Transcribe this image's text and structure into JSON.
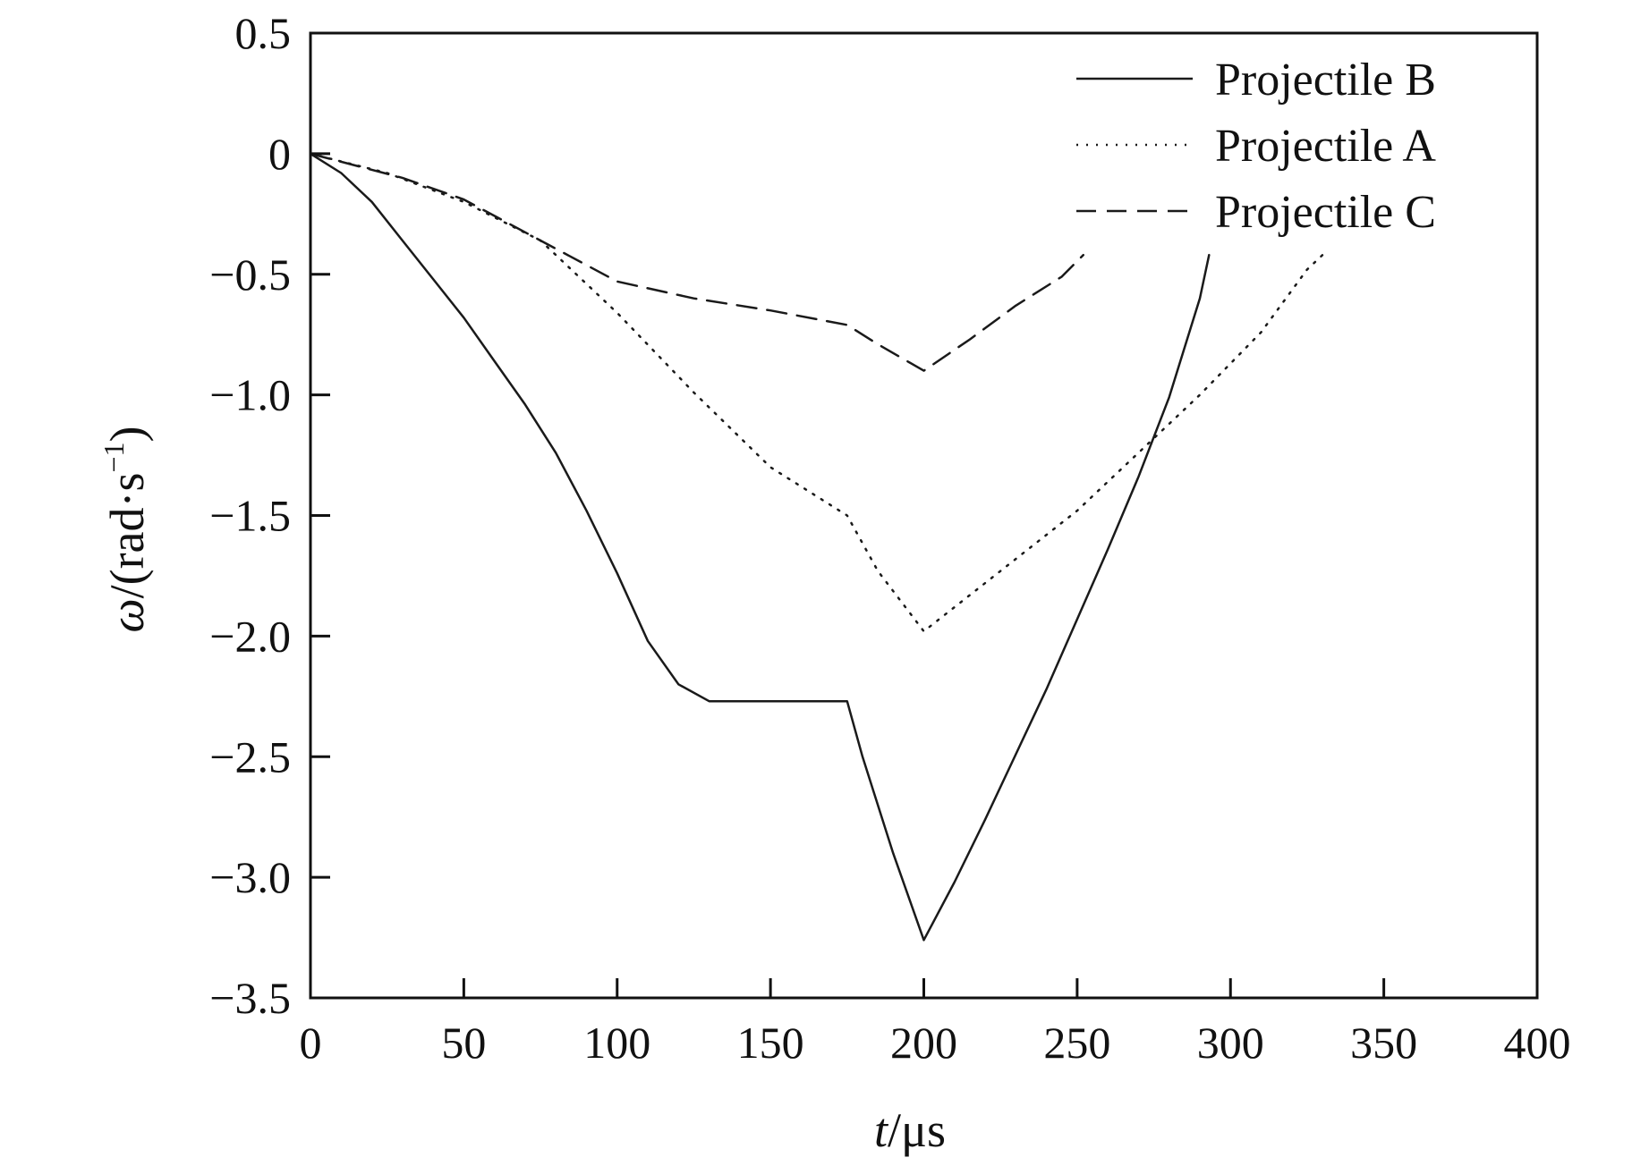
{
  "chart_data": {
    "type": "line",
    "xlabel": {
      "var": "t",
      "unit": "/μs"
    },
    "ylabel": {
      "var": "ω",
      "rest": "/(rad·s",
      "exp": "−1",
      "close": ")"
    },
    "xlim": [
      0,
      400
    ],
    "ylim": [
      -3.5,
      0.5
    ],
    "xticks": [
      0,
      50,
      100,
      150,
      200,
      250,
      300,
      350,
      400
    ],
    "xtick_labels": [
      "0",
      "50",
      "100",
      "150",
      "200",
      "250",
      "300",
      "350",
      "400"
    ],
    "yticks": [
      0.5,
      0,
      -0.5,
      -1.0,
      -1.5,
      -2.0,
      -2.5,
      -3.0,
      -3.5
    ],
    "ytick_labels": [
      "0.5",
      "0",
      "−0.5",
      "−1.0",
      "−1.5",
      "−2.0",
      "−2.5",
      "−3.0",
      "−3.5"
    ],
    "grid": false,
    "legend_position": "top-right",
    "series": [
      {
        "name": "Projectile B",
        "style": "solid",
        "color": "#1a1a1a",
        "points": [
          [
            0,
            0
          ],
          [
            10,
            -0.08
          ],
          [
            20,
            -0.2
          ],
          [
            30,
            -0.36
          ],
          [
            40,
            -0.52
          ],
          [
            50,
            -0.68
          ],
          [
            60,
            -0.86
          ],
          [
            70,
            -1.04
          ],
          [
            80,
            -1.24
          ],
          [
            90,
            -1.48
          ],
          [
            100,
            -1.74
          ],
          [
            110,
            -2.02
          ],
          [
            120,
            -2.2
          ],
          [
            130,
            -2.27
          ],
          [
            140,
            -2.27
          ],
          [
            150,
            -2.27
          ],
          [
            160,
            -2.27
          ],
          [
            175,
            -2.27
          ],
          [
            180,
            -2.5
          ],
          [
            190,
            -2.9
          ],
          [
            200,
            -3.26
          ],
          [
            210,
            -3.02
          ],
          [
            220,
            -2.76
          ],
          [
            230,
            -2.49
          ],
          [
            240,
            -2.22
          ],
          [
            250,
            -1.93
          ],
          [
            260,
            -1.64
          ],
          [
            270,
            -1.34
          ],
          [
            280,
            -1.01
          ],
          [
            290,
            -0.6
          ],
          [
            293,
            -0.42
          ]
        ]
      },
      {
        "name": "Projectile A",
        "style": "dotted",
        "color": "#1a1a1a",
        "points": [
          [
            0,
            0
          ],
          [
            25,
            -0.08
          ],
          [
            50,
            -0.2
          ],
          [
            75,
            -0.36
          ],
          [
            100,
            -0.66
          ],
          [
            125,
            -0.99
          ],
          [
            150,
            -1.3
          ],
          [
            175,
            -1.5
          ],
          [
            185,
            -1.73
          ],
          [
            200,
            -1.98
          ],
          [
            210,
            -1.88
          ],
          [
            230,
            -1.68
          ],
          [
            250,
            -1.48
          ],
          [
            270,
            -1.24
          ],
          [
            290,
            -1.0
          ],
          [
            310,
            -0.74
          ],
          [
            325,
            -0.48
          ],
          [
            330,
            -0.42
          ]
        ]
      },
      {
        "name": "Projectile C",
        "style": "dashed",
        "color": "#1a1a1a",
        "points": [
          [
            0,
            0
          ],
          [
            30,
            -0.1
          ],
          [
            50,
            -0.19
          ],
          [
            75,
            -0.36
          ],
          [
            100,
            -0.53
          ],
          [
            125,
            -0.6
          ],
          [
            150,
            -0.65
          ],
          [
            175,
            -0.71
          ],
          [
            185,
            -0.79
          ],
          [
            200,
            -0.9
          ],
          [
            215,
            -0.77
          ],
          [
            230,
            -0.63
          ],
          [
            245,
            -0.51
          ],
          [
            252,
            -0.42
          ]
        ]
      }
    ]
  }
}
